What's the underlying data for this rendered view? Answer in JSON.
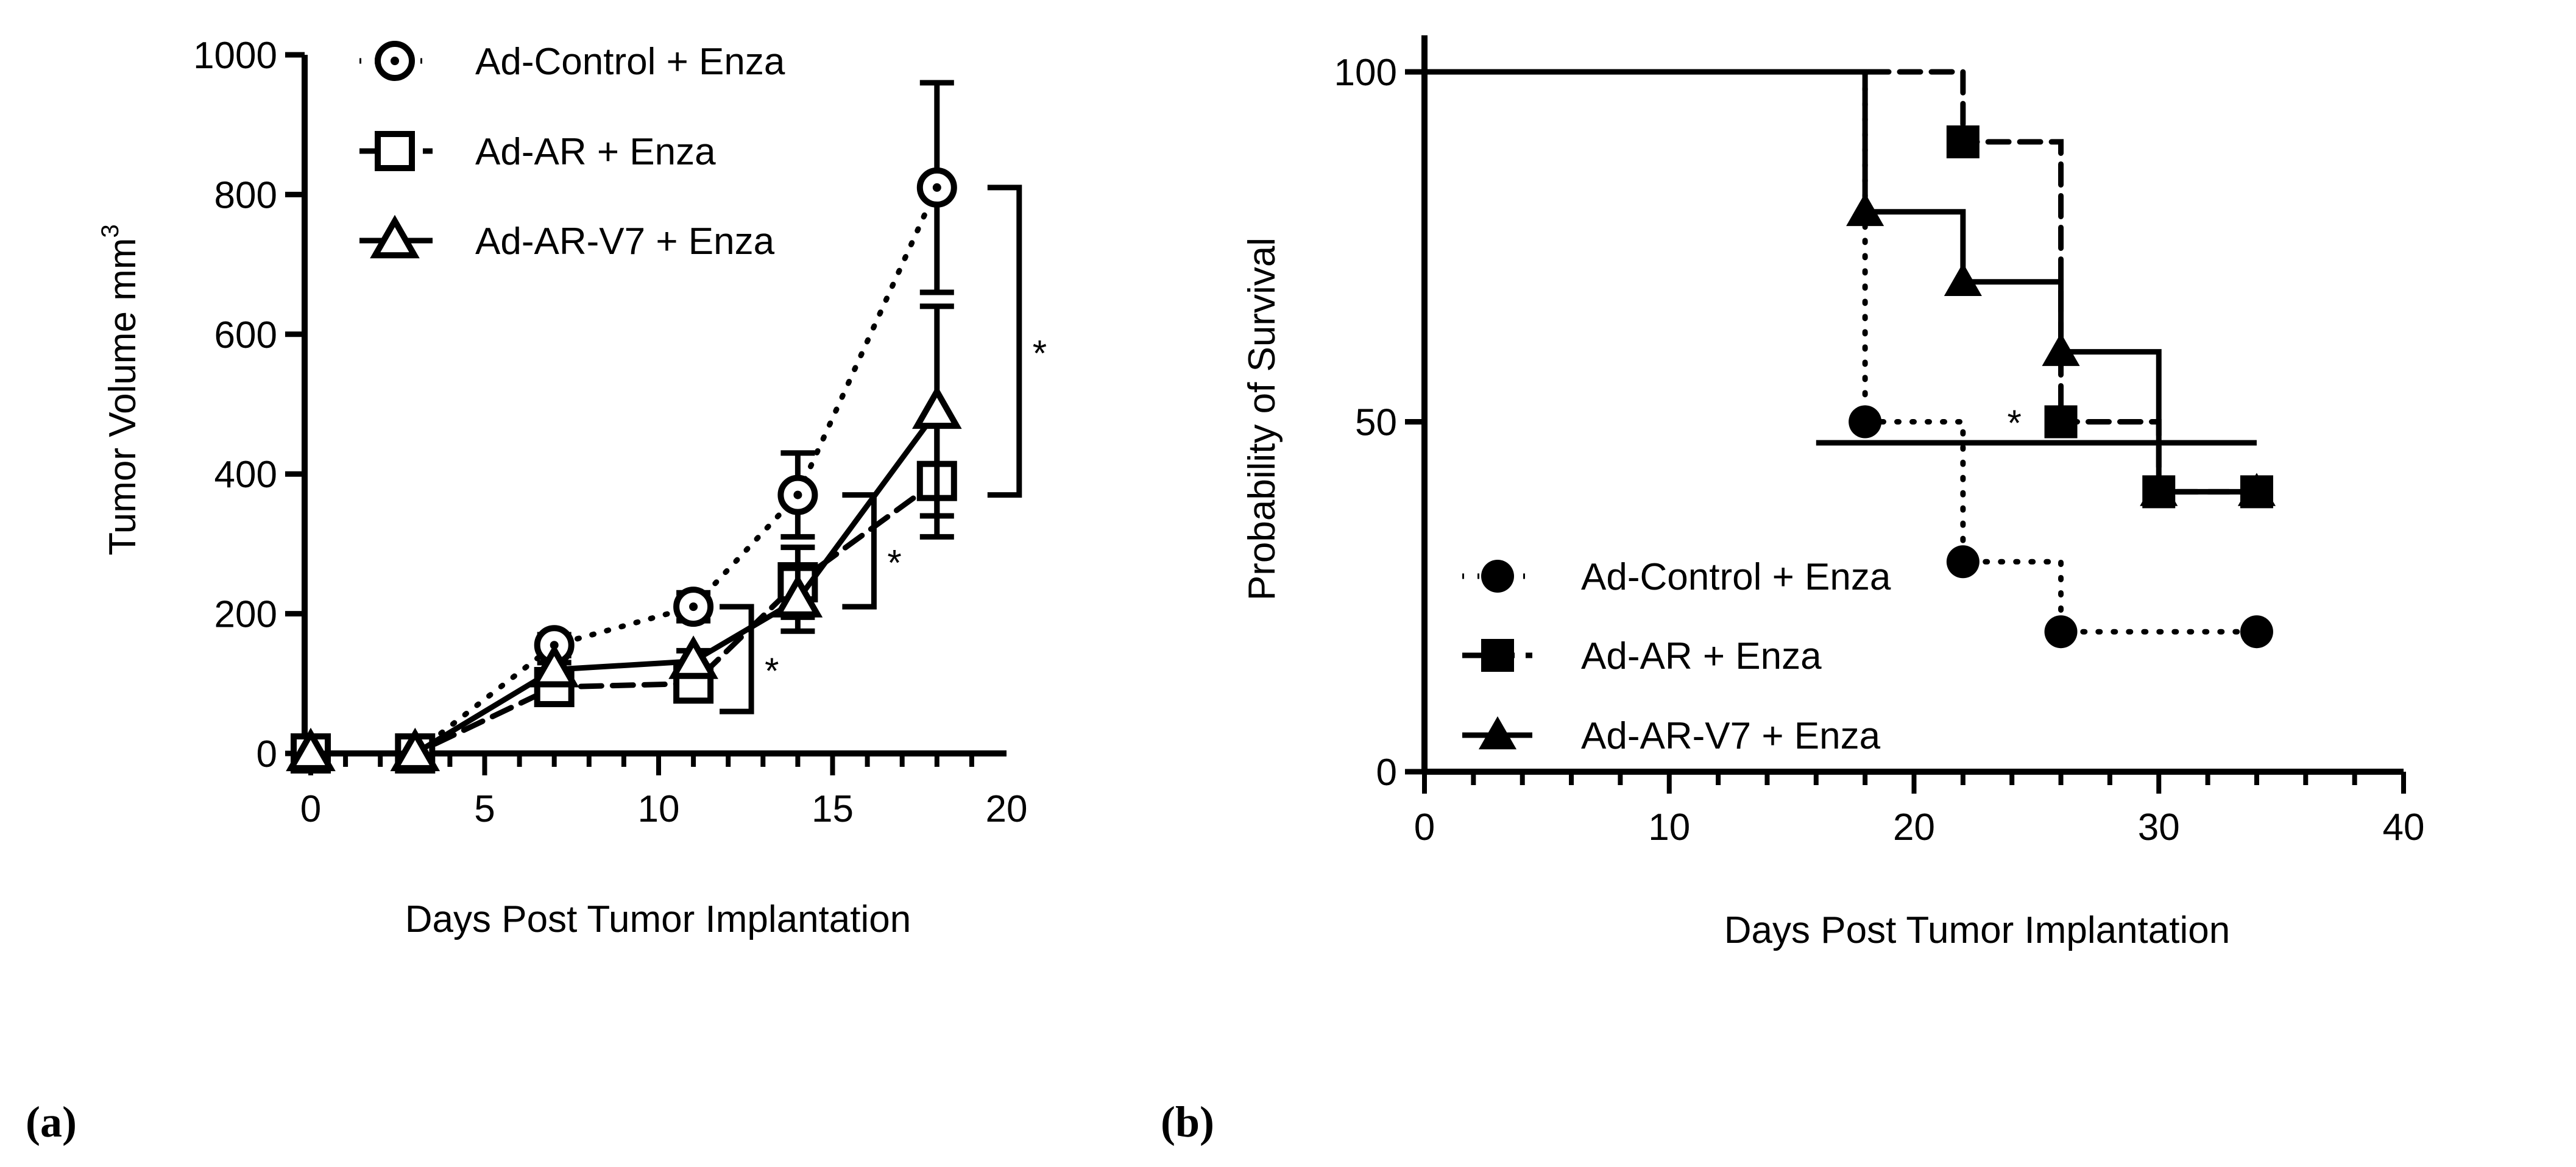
{
  "chart_data": [
    {
      "type": "line",
      "panel_label": "(a)",
      "xlabel": "Days Post Tumor Implantation",
      "ylabel": "Tumor Volume mm",
      "ylabel_sup": "3",
      "xlim": [
        0,
        20
      ],
      "ylim": [
        0,
        1000
      ],
      "xticks": [
        0,
        5,
        10,
        15,
        20
      ],
      "yticks": [
        0,
        200,
        400,
        600,
        800,
        1000
      ],
      "x": [
        0,
        3,
        7,
        11,
        14,
        18
      ],
      "series": [
        {
          "name": "Ad-Control + Enza",
          "marker": "circle-open",
          "line": "dotted",
          "values": [
            0,
            0,
            155,
            210,
            370,
            810
          ],
          "errors": [
            0,
            0,
            15,
            20,
            60,
            150
          ]
        },
        {
          "name": "Ad-AR + Enza",
          "marker": "square-open",
          "line": "dashed",
          "values": [
            0,
            0,
            95,
            100,
            245,
            390
          ],
          "errors": [
            0,
            0,
            10,
            15,
            50,
            80
          ]
        },
        {
          "name": "Ad-AR-V7 + Enza",
          "marker": "triangle-open",
          "line": "solid",
          "values": [
            0,
            0,
            120,
            132,
            220,
            490
          ],
          "errors": [
            0,
            0,
            10,
            15,
            45,
            150
          ]
        }
      ],
      "significance": [
        {
          "label": "*",
          "x": 11,
          "from": 210,
          "to": 60
        },
        {
          "label": "*",
          "x": 14,
          "from": 370,
          "to": 210
        },
        {
          "label": "*",
          "x": 18,
          "from": 810,
          "to": 370
        }
      ],
      "legend_position": "top-left"
    },
    {
      "type": "line",
      "subtype": "kaplan-meier",
      "panel_label": "(b)",
      "xlabel": "Days Post Tumor Implantation",
      "ylabel": "Probability of Survival",
      "xlim": [
        0,
        40
      ],
      "ylim": [
        0,
        100
      ],
      "xticks": [
        0,
        10,
        20,
        30,
        40
      ],
      "yticks": [
        0,
        50,
        100
      ],
      "series": [
        {
          "name": "Ad-Control + Enza",
          "marker": "circle-filled",
          "line": "dotted",
          "x": [
            0,
            18,
            22,
            26,
            34
          ],
          "y": [
            100,
            50,
            30,
            20,
            20
          ]
        },
        {
          "name": "Ad-AR + Enza",
          "marker": "square-filled",
          "line": "dashed",
          "x": [
            0,
            22,
            26,
            30,
            34
          ],
          "y": [
            100,
            90,
            50,
            40,
            40
          ]
        },
        {
          "name": "Ad-AR-V7 + Enza",
          "marker": "triangle-filled",
          "line": "solid",
          "x": [
            0,
            18,
            22,
            26,
            30,
            34
          ],
          "y": [
            100,
            80,
            70,
            60,
            40,
            40
          ]
        }
      ],
      "significance": [
        {
          "label": "*",
          "from_x": 16,
          "to_x": 34,
          "y": 47
        }
      ],
      "legend_position": "bottom-left"
    }
  ]
}
